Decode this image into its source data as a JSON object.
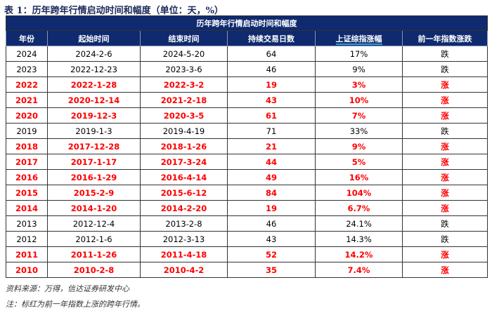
{
  "caption": "表 1：历年跨年行情启动时间和幅度（单位：天，%）",
  "table_title": "历年跨年行情启动时间和幅度",
  "headers": [
    "年份",
    "起始时间",
    "结束时间",
    "持续交易日数",
    "上证综指涨幅",
    "前一年指数涨跌"
  ],
  "highlight_color": "#ff0000",
  "header_bg": "#0f2a6e",
  "rows": [
    {
      "year": "2024",
      "start": "2024-2-6",
      "end": "2024-5-20",
      "days": "64",
      "gain": "17%",
      "prev": "跌",
      "red": false
    },
    {
      "year": "2023",
      "start": "2022-12-23",
      "end": "2023-3-6",
      "days": "46",
      "gain": "9%",
      "prev": "跌",
      "red": false
    },
    {
      "year": "2022",
      "start": "2022-1-28",
      "end": "2022-3-2",
      "days": "19",
      "gain": "3%",
      "prev": "涨",
      "red": true
    },
    {
      "year": "2021",
      "start": "2020-12-14",
      "end": "2021-2-18",
      "days": "43",
      "gain": "10%",
      "prev": "涨",
      "red": true
    },
    {
      "year": "2020",
      "start": "2019-12-3",
      "end": "2020-3-5",
      "days": "61",
      "gain": "7%",
      "prev": "涨",
      "red": true
    },
    {
      "year": "2019",
      "start": "2019-1-3",
      "end": "2019-4-19",
      "days": "71",
      "gain": "33%",
      "prev": "跌",
      "red": false
    },
    {
      "year": "2018",
      "start": "2017-12-28",
      "end": "2018-1-26",
      "days": "21",
      "gain": "9%",
      "prev": "涨",
      "red": true
    },
    {
      "year": "2017",
      "start": "2017-1-17",
      "end": "2017-3-24",
      "days": "44",
      "gain": "5%",
      "prev": "涨",
      "red": true
    },
    {
      "year": "2016",
      "start": "2016-1-29",
      "end": "2016-4-14",
      "days": "49",
      "gain": "16%",
      "prev": "涨",
      "red": true
    },
    {
      "year": "2015",
      "start": "2015-2-9",
      "end": "2015-6-12",
      "days": "84",
      "gain": "104%",
      "prev": "涨",
      "red": true
    },
    {
      "year": "2014",
      "start": "2014-1-20",
      "end": "2014-2-20",
      "days": "19",
      "gain": "6.7%",
      "prev": "涨",
      "red": true
    },
    {
      "year": "2013",
      "start": "2012-12-4",
      "end": "2013-2-8",
      "days": "46",
      "gain": "24.1%",
      "prev": "跌",
      "red": false
    },
    {
      "year": "2012",
      "start": "2012-1-6",
      "end": "2012-3-13",
      "days": "43",
      "gain": "14.3%",
      "prev": "跌",
      "red": false
    },
    {
      "year": "2011",
      "start": "2011-1-26",
      "end": "2011-4-18",
      "days": "52",
      "gain": "14.2%",
      "prev": "涨",
      "red": true
    },
    {
      "year": "2010",
      "start": "2010-2-8",
      "end": "2010-4-2",
      "days": "35",
      "gain": "7.4%",
      "prev": "涨",
      "red": true
    }
  ],
  "source": "资料来源：万得，信达证券研发中心",
  "note": "注：标红为前一年指数上涨的跨年行情。"
}
